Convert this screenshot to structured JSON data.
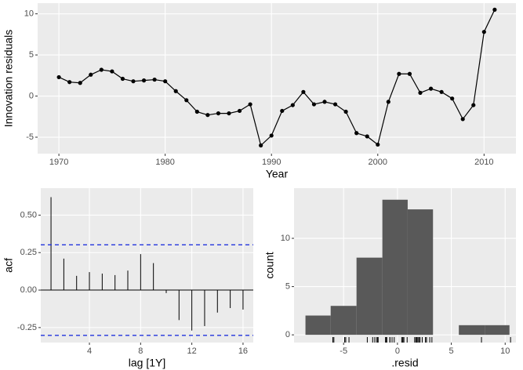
{
  "chart_data": [
    {
      "type": "line",
      "xlabel": "Year",
      "ylabel": "Innovation residuals",
      "x": [
        1970,
        1971,
        1972,
        1973,
        1974,
        1975,
        1976,
        1977,
        1978,
        1979,
        1980,
        1981,
        1982,
        1983,
        1984,
        1985,
        1986,
        1987,
        1988,
        1989,
        1990,
        1991,
        1992,
        1993,
        1994,
        1995,
        1996,
        1997,
        1998,
        1999,
        2000,
        2001,
        2002,
        2003,
        2004,
        2005,
        2006,
        2007,
        2008,
        2009,
        2010,
        2011
      ],
      "values": [
        2.3,
        1.7,
        1.6,
        2.6,
        3.2,
        3.0,
        2.1,
        1.8,
        1.9,
        2.0,
        1.8,
        0.6,
        -0.5,
        -1.9,
        -2.3,
        -2.1,
        -2.1,
        -1.8,
        -1.0,
        -6.0,
        -4.8,
        -1.8,
        -1.1,
        0.5,
        -1.0,
        -0.7,
        -1.0,
        -1.9,
        -4.5,
        -4.9,
        -5.9,
        -0.7,
        2.7,
        2.7,
        0.4,
        0.9,
        0.5,
        -0.3,
        -2.8,
        -1.1,
        7.8,
        10.5
      ],
      "color": "#000000",
      "xlim": [
        1968,
        2013
      ],
      "ylim": [
        -7.0,
        11.3
      ],
      "xticks": [
        1970,
        1980,
        1990,
        2000,
        2010
      ],
      "yticks": [
        -5,
        0,
        5,
        10
      ],
      "grid": true
    },
    {
      "type": "stem",
      "xlabel": "lag [1Y]",
      "ylabel": "acf",
      "x": [
        1,
        2,
        3,
        4,
        5,
        6,
        7,
        8,
        9,
        10,
        11,
        12,
        13,
        14,
        15,
        16
      ],
      "values": [
        0.62,
        0.21,
        0.095,
        0.12,
        0.11,
        0.1,
        0.13,
        0.24,
        0.18,
        -0.02,
        -0.2,
        -0.27,
        -0.24,
        -0.15,
        -0.12,
        -0.13
      ],
      "color": "#000000",
      "bounds": [
        -0.302,
        0.302
      ],
      "bound_color": "#2233dd",
      "xlim": [
        0.2,
        16.8
      ],
      "ylim": [
        -0.35,
        0.68
      ],
      "xticks": [
        4,
        8,
        12,
        16
      ],
      "yticks": [
        -0.25,
        {
          "value": 0,
          "label": "0.00"
        },
        0.25,
        {
          "value": 0.5,
          "label": "0.50"
        }
      ],
      "grid": true
    },
    {
      "type": "histogram",
      "xlabel": ".resid",
      "ylabel": "count",
      "bins": [
        -8.54,
        -6.2,
        -3.8,
        -1.4,
        0.95,
        3.3,
        5.7,
        8.1,
        10.4
      ],
      "counts": [
        2,
        3,
        8,
        14,
        13,
        0,
        1,
        1
      ],
      "color": "#595959",
      "rug": true,
      "xlim": [
        -9.6,
        11.0
      ],
      "ylim": [
        -0.8,
        15.2
      ],
      "xticks": [
        -5,
        0,
        5,
        10
      ],
      "yticks": [
        0,
        5,
        10
      ],
      "grid": true
    }
  ]
}
